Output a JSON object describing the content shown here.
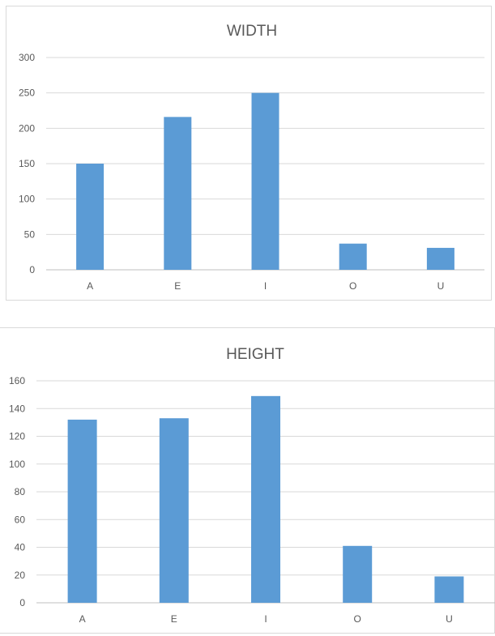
{
  "chart_data": [
    {
      "type": "bar",
      "title": "WIDTH",
      "xlabel": "",
      "ylabel": "",
      "categories": [
        "A",
        "E",
        "I",
        "O",
        "U"
      ],
      "values": [
        150,
        216,
        250,
        37,
        31
      ],
      "ylim": [
        0,
        300
      ],
      "ytick_step": 50,
      "grid": true,
      "legend": "none",
      "bar_color": "#5b9bd5"
    },
    {
      "type": "bar",
      "title": "HEIGHT",
      "xlabel": "",
      "ylabel": "",
      "categories": [
        "A",
        "E",
        "I",
        "O",
        "U"
      ],
      "values": [
        132,
        133,
        149,
        41,
        19
      ],
      "ylim": [
        0,
        160
      ],
      "ytick_step": 20,
      "grid": true,
      "legend": "none",
      "bar_color": "#5b9bd5"
    }
  ]
}
